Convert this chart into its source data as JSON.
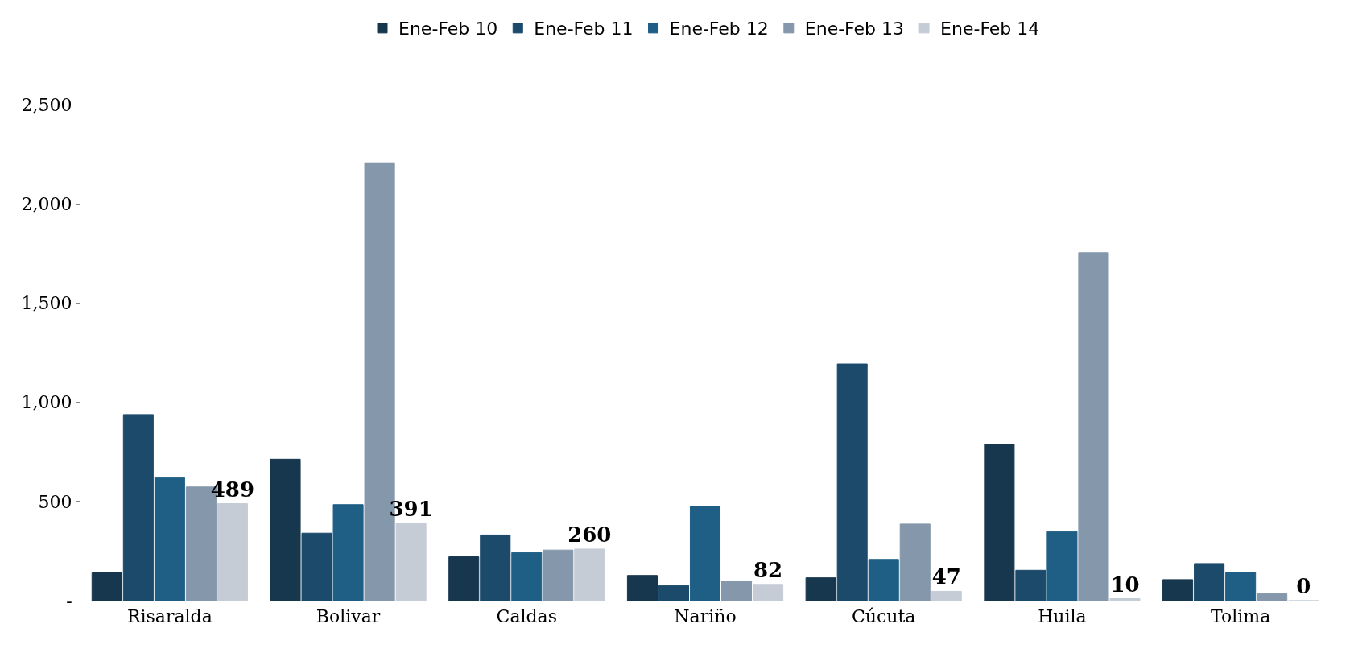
{
  "chart_data": {
    "type": "bar",
    "categories": [
      "Risaralda",
      "Bolivar",
      "Caldas",
      "Nariño",
      "Cúcuta",
      "Huila",
      "Tolima"
    ],
    "series": [
      {
        "name": "Ene-Feb 10",
        "color": "#17374f",
        "values": [
          140,
          713,
          221,
          127,
          115,
          789,
          106
        ]
      },
      {
        "name": "Ene-Feb 11",
        "color": "#1b4a6b",
        "values": [
          938,
          340,
          331,
          76,
          1193,
          153,
          187
        ]
      },
      {
        "name": "Ene-Feb 12",
        "color": "#1f5f86",
        "values": [
          620,
          484,
          242,
          475,
          208,
          348,
          144
        ]
      },
      {
        "name": "Ene-Feb 13",
        "color": "#8497ab",
        "values": [
          573,
          2207,
          255,
          98,
          386,
          1754,
          34
        ]
      },
      {
        "name": "Ene-Feb 14",
        "color": "#c5ccd6",
        "values": [
          489,
          391,
          260,
          82,
          47,
          10,
          0
        ],
        "value_labels": [
          "489",
          "391",
          "260",
          "82",
          "47",
          "10",
          "0"
        ]
      }
    ],
    "ylim": [
      0,
      2500
    ],
    "yticks": [
      {
        "value": 0,
        "label": "-"
      },
      {
        "value": 500,
        "label": "500"
      },
      {
        "value": 1000,
        "label": "1,000"
      },
      {
        "value": 1500,
        "label": "1,500"
      },
      {
        "value": 2000,
        "label": "2,000"
      },
      {
        "value": 2500,
        "label": "2,500"
      }
    ],
    "grid": false,
    "legend": "top"
  }
}
